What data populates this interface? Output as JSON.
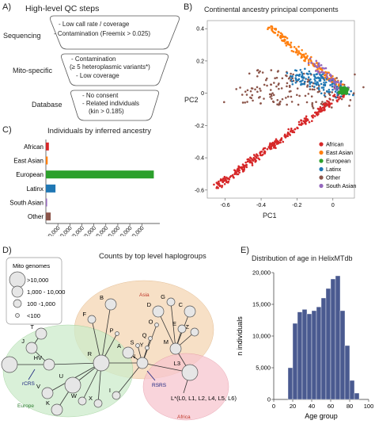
{
  "panelA": {
    "label": "A)",
    "title": "High-level QC steps",
    "steps": [
      {
        "name": "Sequencing",
        "lines": [
          "- Low call rate / coverage",
          "- Contamination (Freemix > 0.025)"
        ]
      },
      {
        "name": "Mito-specific",
        "lines": [
          "- Contamination",
          "(≥ 5 heteroplasmic variants*)",
          "- Low coverage"
        ]
      },
      {
        "name": "Database",
        "lines": [
          "- No consent",
          "- Related individuals",
          "(kin > 0.185)"
        ]
      }
    ]
  },
  "panelB": {
    "label": "B)",
    "title": "Continental ancestry principal components",
    "chart_data": {
      "type": "scatter",
      "xlabel": "PC1",
      "ylabel": "PC2",
      "xlim": [
        -0.7,
        0.12
      ],
      "ylim": [
        -0.65,
        0.45
      ],
      "xticks": [
        -0.6,
        -0.4,
        -0.2,
        0
      ],
      "yticks": [
        0.4,
        0.2,
        0,
        -0.2,
        -0.4,
        -0.6
      ],
      "xtick_labels": [
        "-0.6",
        "-0.4",
        "-0.2",
        "0"
      ],
      "ytick_labels": [
        "0.4",
        "0.2",
        "0",
        "-0.2",
        "-0.4",
        "-0.6"
      ],
      "legend_position": "bottom-right",
      "series": [
        {
          "name": "African",
          "color": "#d62728"
        },
        {
          "name": "East Asian",
          "color": "#ff7f0e"
        },
        {
          "name": "European",
          "color": "#2ca02c"
        },
        {
          "name": "Latinx",
          "color": "#1f77b4"
        },
        {
          "name": "Other",
          "color": "#8c564b"
        },
        {
          "name": "South Asian",
          "color": "#9467bd"
        }
      ]
    }
  },
  "panelC": {
    "label": "C)",
    "title": "Individuals by inferred ancestry",
    "chart_data": {
      "type": "bar",
      "orientation": "horizontal",
      "categories": [
        "African",
        "East Asian",
        "European",
        "Latinx",
        "South Asian",
        "Other"
      ],
      "values": [
        5000,
        3000,
        180000,
        16000,
        2000,
        8000
      ],
      "colors": [
        "#d62728",
        "#ff7f0e",
        "#2ca02c",
        "#1f77b4",
        "#9467bd",
        "#8c564b"
      ],
      "xlim": [
        0,
        190000
      ],
      "xticks": [
        20000,
        40000,
        60000,
        80000,
        100000,
        120000,
        140000,
        160000
      ],
      "xtick_labels": [
        "20,000",
        "40,000",
        "60,000",
        "80,000",
        "100,000",
        "120,000",
        "140,000",
        "160,000"
      ]
    }
  },
  "panelD": {
    "label": "D)",
    "title": "Counts by top level haplogroups",
    "legend_title": "Mito genomes",
    "legend_items": [
      ">10,000",
      "1,000 - 10,000",
      "100 -1,000",
      "<100"
    ],
    "regions": [
      "Asia",
      "Africa",
      "Europe"
    ],
    "region_colors": {
      "asia": "#f5d6b3",
      "africa": "#f7c6cf",
      "europe": "#cdeccb"
    },
    "annotations": [
      "rCRS",
      "RSRS"
    ],
    "nodes": [
      {
        "label": "H",
        "size": "large"
      },
      {
        "label": "HV",
        "size": "medium"
      },
      {
        "label": "J",
        "size": "medium"
      },
      {
        "label": "T",
        "size": "medium"
      },
      {
        "label": "U",
        "size": "large"
      },
      {
        "label": "K",
        "size": "medium"
      },
      {
        "label": "V",
        "size": "medium"
      },
      {
        "label": "W",
        "size": "small"
      },
      {
        "label": "X",
        "size": "small"
      },
      {
        "label": "I",
        "size": "small"
      },
      {
        "label": "R",
        "size": "large"
      },
      {
        "label": "N",
        "size": "medium"
      },
      {
        "label": "F",
        "size": "small"
      },
      {
        "label": "B",
        "size": "medium"
      },
      {
        "label": "P",
        "size": "tiny"
      },
      {
        "label": "A",
        "size": "medium"
      },
      {
        "label": "S",
        "size": "tiny"
      },
      {
        "label": "Y",
        "size": "tiny"
      },
      {
        "label": "O",
        "size": "tiny"
      },
      {
        "label": "Q",
        "size": "tiny"
      },
      {
        "label": "D",
        "size": "medium"
      },
      {
        "label": "G",
        "size": "small"
      },
      {
        "label": "C",
        "size": "medium"
      },
      {
        "label": "Z",
        "size": "small"
      },
      {
        "label": "E",
        "size": "small"
      },
      {
        "label": "M",
        "size": "medium"
      },
      {
        "label": "L3",
        "size": "large"
      },
      {
        "label": "L*(L0, L1, L2, L4, L5, L6)",
        "size": "large"
      }
    ]
  },
  "panelE": {
    "label": "E)",
    "title": "Distribution of age in HelixMTdb",
    "chart_data": {
      "type": "bar",
      "xlabel": "Age group",
      "ylabel": "n individuals",
      "xlim": [
        0,
        100
      ],
      "ylim": [
        0,
        20000
      ],
      "xticks": [
        0,
        20,
        40,
        60,
        80,
        100
      ],
      "yticks": [
        0,
        5000,
        10000,
        15000,
        20000
      ],
      "ytick_labels": [
        "0",
        "5,000",
        "10,000",
        "15,000",
        "20,000"
      ],
      "bin_width": 5,
      "bin_starts": [
        15,
        20,
        25,
        30,
        35,
        40,
        45,
        50,
        55,
        60,
        65,
        70,
        75,
        80,
        85
      ],
      "values": [
        5000,
        12000,
        13800,
        14200,
        13500,
        14000,
        14600,
        16000,
        17500,
        19000,
        19500,
        14000,
        8500,
        3000,
        1000
      ],
      "color": "#4a5a90"
    }
  }
}
